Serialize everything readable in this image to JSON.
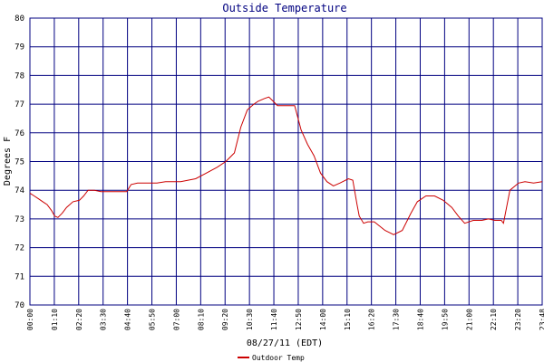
{
  "colors": {
    "grid": "#000080",
    "line": "#cc0000",
    "title": "#000080",
    "background": "#ffffff"
  },
  "chart_data": {
    "type": "line",
    "title": "Outside Temperature",
    "xlabel": "08/27/11 (EDT)",
    "ylabel": "Degrees F",
    "x_tick_labels": [
      "00:00",
      "01:10",
      "02:20",
      "03:30",
      "04:40",
      "05:50",
      "07:00",
      "08:10",
      "09:20",
      "10:30",
      "11:40",
      "12:50",
      "14:00",
      "15:10",
      "16:20",
      "17:30",
      "18:40",
      "19:50",
      "21:00",
      "22:10",
      "23:20",
      "23:48"
    ],
    "x_unit": "hours",
    "xlim": [
      0,
      23.8
    ],
    "ylim": [
      70,
      80
    ],
    "y_ticks": [
      "70",
      "71",
      "72",
      "73",
      "74",
      "75",
      "76",
      "77",
      "78",
      "79",
      "80"
    ],
    "grid": true,
    "legend_placement": "bottom",
    "series": [
      {
        "name": "Outdoor Temp",
        "x": [
          0.0,
          0.2,
          0.4,
          0.6,
          0.8,
          1.0,
          1.15,
          1.3,
          1.5,
          1.7,
          2.0,
          2.3,
          2.5,
          2.7,
          3.0,
          3.3,
          3.5,
          4.0,
          4.5,
          4.7,
          5.0,
          5.5,
          5.9,
          6.3,
          7.0,
          7.7,
          8.2,
          8.7,
          9.1,
          9.5,
          9.8,
          10.1,
          10.4,
          10.6,
          10.9,
          11.1,
          11.3,
          11.5,
          11.7,
          12.0,
          12.3,
          12.6,
          12.9,
          13.2,
          13.5,
          13.8,
          14.1,
          14.4,
          14.8,
          15.0,
          15.2,
          15.3,
          15.5,
          15.7,
          16.0,
          16.5,
          16.9,
          17.3,
          17.7,
          18.0,
          18.4,
          18.8,
          19.2,
          19.6,
          19.9,
          20.2,
          20.6,
          21.0,
          21.3,
          21.6,
          21.9,
          22.0,
          22.3,
          22.7,
          23.0,
          23.4,
          23.8
        ],
        "y": [
          73.9,
          73.8,
          73.7,
          73.6,
          73.5,
          73.3,
          73.1,
          73.05,
          73.2,
          73.4,
          73.6,
          73.65,
          73.8,
          74.0,
          74.0,
          73.95,
          73.95,
          73.95,
          73.95,
          74.2,
          74.25,
          74.25,
          74.25,
          74.3,
          74.3,
          74.4,
          74.6,
          74.8,
          75.0,
          75.3,
          76.2,
          76.8,
          77.0,
          77.1,
          77.2,
          77.25,
          77.1,
          76.95,
          76.95,
          76.95,
          76.95,
          76.1,
          75.6,
          75.2,
          74.6,
          74.3,
          74.15,
          74.25,
          74.4,
          74.35,
          73.5,
          73.1,
          72.85,
          72.9,
          72.9,
          72.6,
          72.45,
          72.6,
          73.2,
          73.6,
          73.8,
          73.8,
          73.65,
          73.4,
          73.1,
          72.85,
          72.95,
          72.95,
          73.0,
          72.95,
          72.95,
          72.85,
          74.0,
          74.25,
          74.3,
          74.25,
          74.3
        ]
      }
    ]
  }
}
